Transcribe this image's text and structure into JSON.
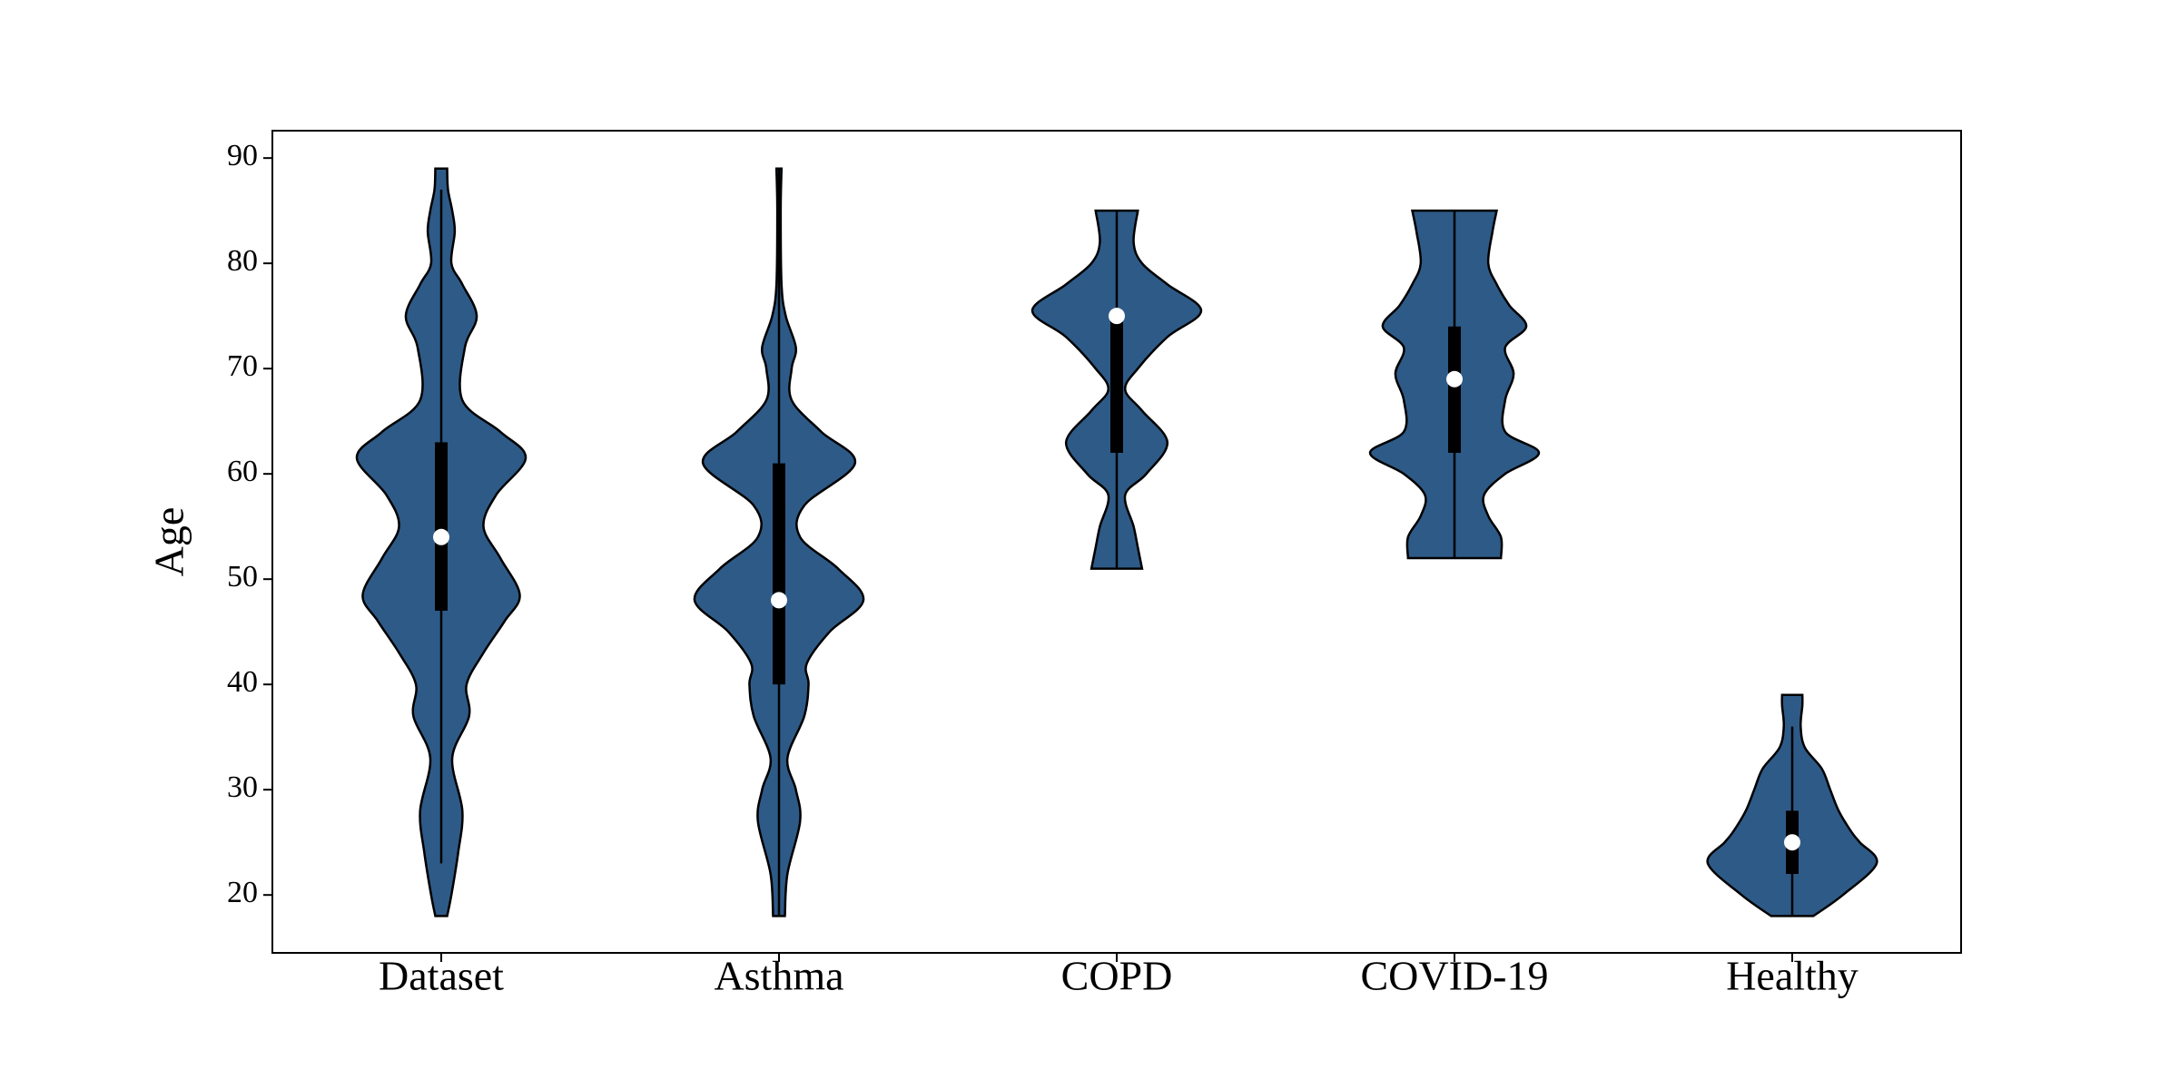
{
  "chart_data": {
    "type": "violin",
    "ylabel": "Age",
    "categories": [
      "Dataset",
      "Asthma",
      "COPD",
      "COVID-19",
      "Healthy"
    ],
    "color": "#2e5a87",
    "box_color": "#000000",
    "median_color": "#ffffff",
    "ylim": [
      14.5,
      92.6
    ],
    "yticks": [
      20,
      30,
      40,
      50,
      60,
      70,
      80,
      90
    ],
    "violins": [
      {
        "kde_y": [
          18,
          20,
          24,
          28,
          33,
          37,
          40,
          43,
          46,
          48.5,
          52,
          55,
          58,
          61.5,
          64,
          67,
          72,
          75,
          78,
          80,
          83,
          85,
          87,
          89
        ],
        "kde_w": [
          0.07,
          0.12,
          0.2,
          0.25,
          0.13,
          0.33,
          0.3,
          0.5,
          0.75,
          0.93,
          0.7,
          0.5,
          0.65,
          1.0,
          0.7,
          0.25,
          0.28,
          0.42,
          0.25,
          0.12,
          0.16,
          0.13,
          0.08,
          0.07
        ],
        "whisker_low": 23,
        "q1": 47,
        "median": 54,
        "q3": 63,
        "whisker_high": 87
      },
      {
        "kde_y": [
          18,
          22,
          27,
          30,
          33,
          37,
          40,
          42,
          45,
          48,
          51,
          54,
          57,
          61,
          64,
          67,
          70,
          72,
          75,
          78,
          85,
          89
        ],
        "kde_w": [
          0.07,
          0.1,
          0.25,
          0.2,
          0.1,
          0.3,
          0.35,
          0.33,
          0.6,
          1.0,
          0.7,
          0.25,
          0.3,
          0.9,
          0.5,
          0.15,
          0.15,
          0.2,
          0.08,
          0.03,
          0.02,
          0.03
        ],
        "whisker_low": 18,
        "q1": 40,
        "median": 48,
        "q3": 61,
        "whisker_high": 89
      },
      {
        "kde_y": [
          51,
          53,
          55,
          58,
          60,
          63,
          66,
          68,
          70,
          73,
          75.5,
          78,
          80,
          82,
          85
        ],
        "kde_w": [
          0.3,
          0.25,
          0.2,
          0.1,
          0.35,
          0.6,
          0.3,
          0.1,
          0.25,
          0.6,
          1.0,
          0.6,
          0.3,
          0.2,
          0.25
        ],
        "whisker_low": 51,
        "q1": 62,
        "median": 75,
        "q3": 75,
        "whisker_high": 85
      },
      {
        "kde_y": [
          52,
          54,
          56,
          58,
          60,
          62,
          64,
          67,
          69.5,
          72,
          74,
          76,
          78,
          80,
          83,
          85
        ],
        "kde_w": [
          0.55,
          0.55,
          0.4,
          0.35,
          0.6,
          1.0,
          0.6,
          0.6,
          0.7,
          0.6,
          0.85,
          0.65,
          0.5,
          0.4,
          0.45,
          0.5
        ],
        "whisker_low": 52,
        "q1": 62,
        "median": 69,
        "q3": 74,
        "whisker_high": 85
      },
      {
        "kde_y": [
          18,
          20,
          23,
          25,
          26,
          28,
          30,
          32,
          34,
          36,
          38,
          39
        ],
        "kde_w": [
          0.25,
          0.6,
          1.0,
          0.8,
          0.7,
          0.55,
          0.45,
          0.35,
          0.15,
          0.1,
          0.12,
          0.12
        ],
        "whisker_low": 18,
        "q1": 22,
        "median": 25,
        "q3": 28,
        "whisker_high": 36
      }
    ]
  }
}
